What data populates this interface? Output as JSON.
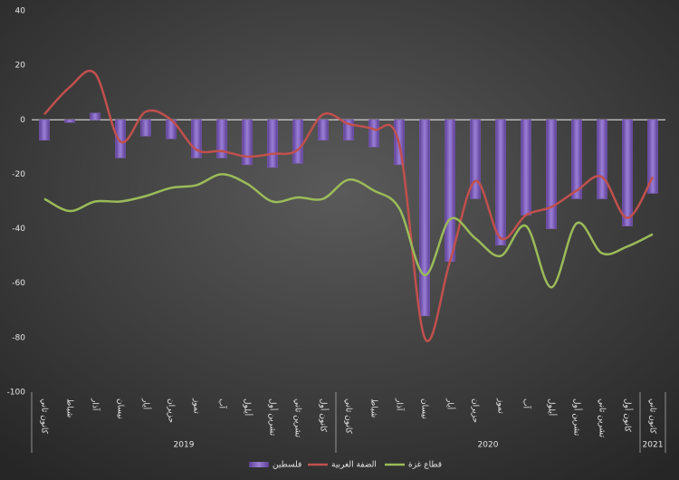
{
  "chart_data": {
    "type": "bar-line",
    "categories": [
      "كانون ثاني",
      "شباط",
      "آذار",
      "نيسان",
      "أيار",
      "حزيران",
      "تموز",
      "آب",
      "أيلول",
      "تشرين أول",
      "تشرين ثاني",
      "كانون أول",
      "كانون ثاني",
      "شباط",
      "آذار",
      "نيسان",
      "أيار",
      "حزيران",
      "تموز",
      "آب",
      "أيلول",
      "تشرين أول",
      "تشرين ثاني",
      "كانون أول",
      "كانون ثاني"
    ],
    "x_groups": [
      {
        "label": "2019",
        "count": 12
      },
      {
        "label": "2020",
        "count": 12
      },
      {
        "label": "2021",
        "count": 1
      }
    ],
    "series": [
      {
        "name": "فلسطين",
        "type": "bar",
        "color": "#7e5cb8",
        "values": [
          -7.5,
          -1,
          2.5,
          -14,
          -6,
          -7,
          -14,
          -14,
          -16.5,
          -17.5,
          -16,
          -7.5,
          -7.5,
          -10,
          -16.5,
          -72,
          -52,
          -29,
          -46,
          -35,
          -40,
          -29,
          -29,
          -39,
          -27
        ]
      },
      {
        "name": "الضفة الغربية",
        "type": "line",
        "color": "#c0504d",
        "values": [
          2,
          12,
          17,
          -8,
          3,
          0,
          -11,
          -11.5,
          -13.5,
          -12.5,
          -11,
          2,
          -1.5,
          -3.5,
          -9,
          -80,
          -52,
          -22.5,
          -43.5,
          -35,
          -32,
          -26,
          -21,
          -36,
          -21
        ]
      },
      {
        "name": "قطاع غزة",
        "type": "line",
        "color": "#9bbb59",
        "values": [
          -29,
          -33.5,
          -30,
          -30,
          -28,
          -25,
          -24,
          -20,
          -23.5,
          -30,
          -28.5,
          -29,
          -22,
          -26,
          -32.5,
          -57,
          -36.5,
          -43.5,
          -50,
          -39,
          -61.5,
          -38,
          -49,
          -46.5,
          -42
        ]
      }
    ],
    "ylim": [
      -100,
      40
    ],
    "yticks": [
      -100,
      -80,
      -60,
      -40,
      -20,
      0,
      20,
      40
    ]
  }
}
